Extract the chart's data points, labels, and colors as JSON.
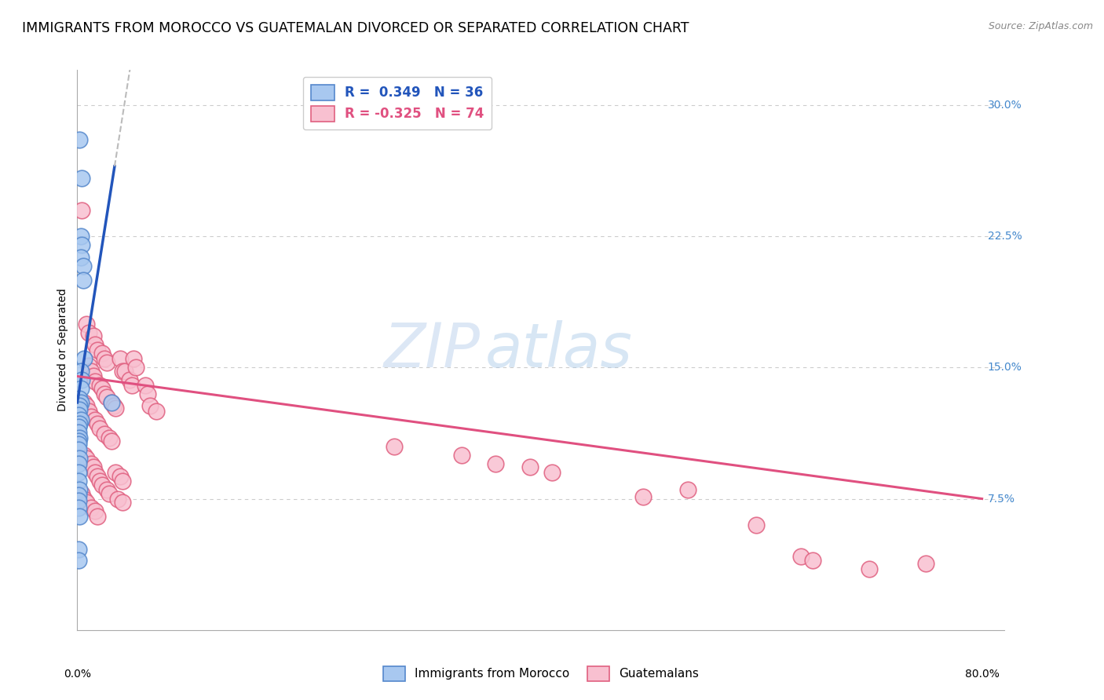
{
  "title": "IMMIGRANTS FROM MOROCCO VS GUATEMALAN DIVORCED OR SEPARATED CORRELATION CHART",
  "source": "Source: ZipAtlas.com",
  "ylabel": "Divorced or Separated",
  "yticks": [
    0.075,
    0.15,
    0.225,
    0.3
  ],
  "ytick_labels": [
    "7.5%",
    "15.0%",
    "22.5%",
    "30.0%"
  ],
  "xlim": [
    0.0,
    0.82
  ],
  "ylim": [
    0.0,
    0.32
  ],
  "morocco_r": 0.349,
  "morocco_n": 36,
  "guatemalan_r": -0.325,
  "guatemalan_n": 74,
  "morocco_points": [
    [
      0.002,
      0.28
    ],
    [
      0.004,
      0.258
    ],
    [
      0.003,
      0.225
    ],
    [
      0.004,
      0.22
    ],
    [
      0.003,
      0.213
    ],
    [
      0.005,
      0.208
    ],
    [
      0.005,
      0.2
    ],
    [
      0.006,
      0.155
    ],
    [
      0.003,
      0.148
    ],
    [
      0.004,
      0.143
    ],
    [
      0.003,
      0.138
    ],
    [
      0.002,
      0.132
    ],
    [
      0.003,
      0.13
    ],
    [
      0.002,
      0.128
    ],
    [
      0.002,
      0.126
    ],
    [
      0.001,
      0.123
    ],
    [
      0.003,
      0.12
    ],
    [
      0.002,
      0.118
    ],
    [
      0.001,
      0.116
    ],
    [
      0.001,
      0.113
    ],
    [
      0.002,
      0.11
    ],
    [
      0.001,
      0.108
    ],
    [
      0.001,
      0.106
    ],
    [
      0.001,
      0.103
    ],
    [
      0.002,
      0.098
    ],
    [
      0.001,
      0.095
    ],
    [
      0.001,
      0.09
    ],
    [
      0.001,
      0.085
    ],
    [
      0.002,
      0.08
    ],
    [
      0.001,
      0.077
    ],
    [
      0.001,
      0.074
    ],
    [
      0.001,
      0.07
    ],
    [
      0.002,
      0.065
    ],
    [
      0.03,
      0.13
    ],
    [
      0.001,
      0.046
    ],
    [
      0.001,
      0.04
    ]
  ],
  "guatemalan_points": [
    [
      0.004,
      0.24
    ],
    [
      0.008,
      0.175
    ],
    [
      0.01,
      0.17
    ],
    [
      0.014,
      0.168
    ],
    [
      0.016,
      0.163
    ],
    [
      0.018,
      0.16
    ],
    [
      0.022,
      0.158
    ],
    [
      0.024,
      0.155
    ],
    [
      0.026,
      0.153
    ],
    [
      0.01,
      0.151
    ],
    [
      0.012,
      0.148
    ],
    [
      0.014,
      0.145
    ],
    [
      0.016,
      0.142
    ],
    [
      0.02,
      0.14
    ],
    [
      0.022,
      0.138
    ],
    [
      0.024,
      0.135
    ],
    [
      0.026,
      0.133
    ],
    [
      0.03,
      0.13
    ],
    [
      0.032,
      0.128
    ],
    [
      0.034,
      0.127
    ],
    [
      0.038,
      0.155
    ],
    [
      0.04,
      0.148
    ],
    [
      0.042,
      0.148
    ],
    [
      0.046,
      0.143
    ],
    [
      0.048,
      0.14
    ],
    [
      0.05,
      0.155
    ],
    [
      0.052,
      0.15
    ],
    [
      0.006,
      0.13
    ],
    [
      0.008,
      0.128
    ],
    [
      0.01,
      0.125
    ],
    [
      0.012,
      0.122
    ],
    [
      0.016,
      0.12
    ],
    [
      0.018,
      0.118
    ],
    [
      0.02,
      0.115
    ],
    [
      0.024,
      0.112
    ],
    [
      0.028,
      0.11
    ],
    [
      0.03,
      0.108
    ],
    [
      0.006,
      0.1
    ],
    [
      0.008,
      0.098
    ],
    [
      0.012,
      0.095
    ],
    [
      0.014,
      0.093
    ],
    [
      0.016,
      0.09
    ],
    [
      0.018,
      0.088
    ],
    [
      0.02,
      0.085
    ],
    [
      0.022,
      0.083
    ],
    [
      0.026,
      0.08
    ],
    [
      0.028,
      0.078
    ],
    [
      0.034,
      0.09
    ],
    [
      0.038,
      0.088
    ],
    [
      0.04,
      0.085
    ],
    [
      0.004,
      0.078
    ],
    [
      0.006,
      0.075
    ],
    [
      0.008,
      0.073
    ],
    [
      0.012,
      0.07
    ],
    [
      0.016,
      0.068
    ],
    [
      0.018,
      0.065
    ],
    [
      0.036,
      0.075
    ],
    [
      0.04,
      0.073
    ],
    [
      0.06,
      0.14
    ],
    [
      0.062,
      0.135
    ],
    [
      0.064,
      0.128
    ],
    [
      0.07,
      0.125
    ],
    [
      0.28,
      0.105
    ],
    [
      0.34,
      0.1
    ],
    [
      0.37,
      0.095
    ],
    [
      0.4,
      0.093
    ],
    [
      0.42,
      0.09
    ],
    [
      0.5,
      0.076
    ],
    [
      0.54,
      0.08
    ],
    [
      0.6,
      0.06
    ],
    [
      0.64,
      0.042
    ],
    [
      0.65,
      0.04
    ],
    [
      0.7,
      0.035
    ],
    [
      0.75,
      0.038
    ]
  ],
  "morocco_color": "#a8c8f0",
  "morocco_edge_color": "#5588cc",
  "guatemalan_color": "#f8c0d0",
  "guatemalan_edge_color": "#e06080",
  "morocco_line_color": "#2255bb",
  "guatemalan_line_color": "#e05080",
  "dashed_line_color": "#bbbbbb",
  "background_color": "#ffffff",
  "grid_color": "#cccccc",
  "title_fontsize": 12.5,
  "axis_label_fontsize": 10,
  "tick_fontsize": 10,
  "source_fontsize": 9,
  "legend_fontsize": 12,
  "watermark_text": "ZIPatlas",
  "watermark_color": "#c8dff8",
  "watermark_alpha": 0.5
}
